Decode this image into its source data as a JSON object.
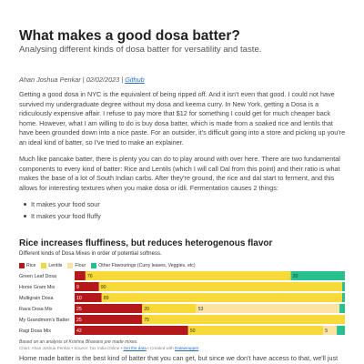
{
  "article": {
    "title": "What makes a good dosa batter?",
    "subtitle": "Analysing different kinds of dosa batter for versatility and taste.",
    "author": "Ahan Joshua Penkar",
    "date": "02/02/2023",
    "github_label": "Github",
    "paragraphs": [
      "Getting a good dosa in NYC is the equivalent of being ripped off. And it isn't even that good. I could not have survived my undergraduate degree without my dosa and keema curry. In New York, getting a Dosa is a ridiculously expensive affair. I refuse to pay more that $12 for something I could get for much cheaper back home. However, what I am willing to do is buy dosa batter, which is made from a soaked rice and lentils that have been grounded down into a nice paste. For an outsider, it's difficult going into a store and picking up you're an ideal kind of batter, so I've tried to make an explainer.",
      "Much like pancake batter, there is plenty you can do to play around with over here. There are two fundamental components to every kind of batter: Rice and Lentils (which I will call Dal from this point) and their ratio is what makes the base of a lot of South Indian carbs. After they're ground, the rice and dal start to ferment, and this allows for interesting textures when you make dosa or idli. Fermentation causes 2 things:",
      "Home made batter is the best kind of batter that you can get, but since we don't have access to that, we'll just"
    ],
    "bullets": [
      "It makes your food sour",
      "It makes your food fluffy"
    ]
  },
  "chart": {
    "title": "Rice increases fluffiness, but reduces heterogenous flavor",
    "description": "Different kinds of Dosa Mixes in order of potential softness.",
    "note": "Based on an analysis of Krishna Bhavans pre made mixes.",
    "source_prefix": "Chart: Ahan Joshua Penkar • Source: Tax India Online • ",
    "source_link": "Get the data",
    "source_mid": " • Created with ",
    "source_tool": "Datawrapper"
  },
  "chart_data": {
    "type": "bar",
    "stacked": true,
    "orientation": "horizontal",
    "title": "Rice increases fluffiness, but reduces heterogenous flavor",
    "categories": [
      "Green Leaf Dosa",
      "Horse Gram Mix",
      "Multigrain Dosa",
      "Rava Dosa Mix",
      "My Grandmom's Batter",
      "Ragi Dosa Mix"
    ],
    "series": [
      {
        "name": "Rice",
        "color": "#b5181b",
        "values": [
          4,
          9,
          10,
          25,
          25,
          42
        ]
      },
      {
        "name": "Lentils",
        "color": "#f7d937",
        "values": [
          76,
          90,
          89,
          20,
          75,
          50
        ]
      },
      {
        "name": "Flour",
        "color": "#fbe4a3",
        "values": [
          0,
          0,
          0,
          53,
          0,
          5
        ]
      },
      {
        "name": "Other Flavourings (Curry leaves, Veggies, etc)",
        "color": "#27c08e",
        "values": [
          20,
          1,
          1,
          2,
          0,
          3
        ]
      }
    ],
    "xlim": [
      0,
      100
    ],
    "label_threshold": 5
  }
}
